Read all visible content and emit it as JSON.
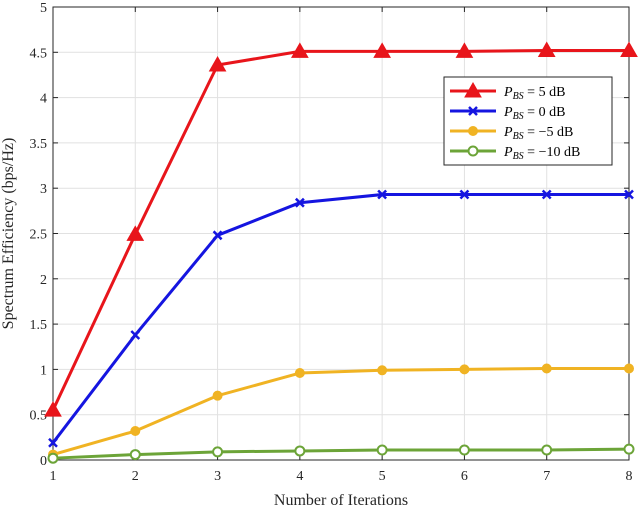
{
  "chart_data": {
    "type": "line",
    "xlabel": "Number of Iterations",
    "ylabel": "Spectrum Efficiency (bps/Hz)",
    "x": [
      1,
      2,
      3,
      4,
      5,
      6,
      7,
      8
    ],
    "xlim": [
      1,
      8
    ],
    "ylim": [
      0,
      5
    ],
    "xticks": [
      "1",
      "2",
      "3",
      "4",
      "5",
      "6",
      "7",
      "8"
    ],
    "yticks": [
      "0",
      "0.5",
      "1",
      "1.5",
      "2",
      "2.5",
      "3",
      "3.5",
      "4",
      "4.5",
      "5"
    ],
    "grid": true,
    "legend_position": "top-right",
    "series": [
      {
        "name": "P_BS = 5 dB",
        "legend_var": "P",
        "legend_sub": "BS",
        "legend_rest": " = 5 dB",
        "color": "#e8151b",
        "marker": "triangle",
        "values": [
          0.55,
          2.49,
          4.36,
          4.51,
          4.51,
          4.51,
          4.52,
          4.52
        ]
      },
      {
        "name": "P_BS = 0 dB",
        "legend_var": "P",
        "legend_sub": "BS",
        "legend_rest": " = 0 dB",
        "color": "#1515e0",
        "marker": "x",
        "values": [
          0.19,
          1.38,
          2.48,
          2.84,
          2.93,
          2.93,
          2.93,
          2.93
        ]
      },
      {
        "name": "P_BS = −5 dB",
        "legend_var": "P",
        "legend_sub": "BS",
        "legend_rest": " = −5 dB",
        "color": "#f0b323",
        "marker": "dot",
        "values": [
          0.06,
          0.32,
          0.71,
          0.96,
          0.99,
          1.0,
          1.01,
          1.01
        ]
      },
      {
        "name": "P_BS = −10 dB",
        "legend_var": "P",
        "legend_sub": "BS",
        "legend_rest": " = −10 dB",
        "color": "#6ca438",
        "marker": "circle",
        "values": [
          0.02,
          0.06,
          0.09,
          0.1,
          0.11,
          0.11,
          0.11,
          0.12
        ]
      }
    ]
  }
}
